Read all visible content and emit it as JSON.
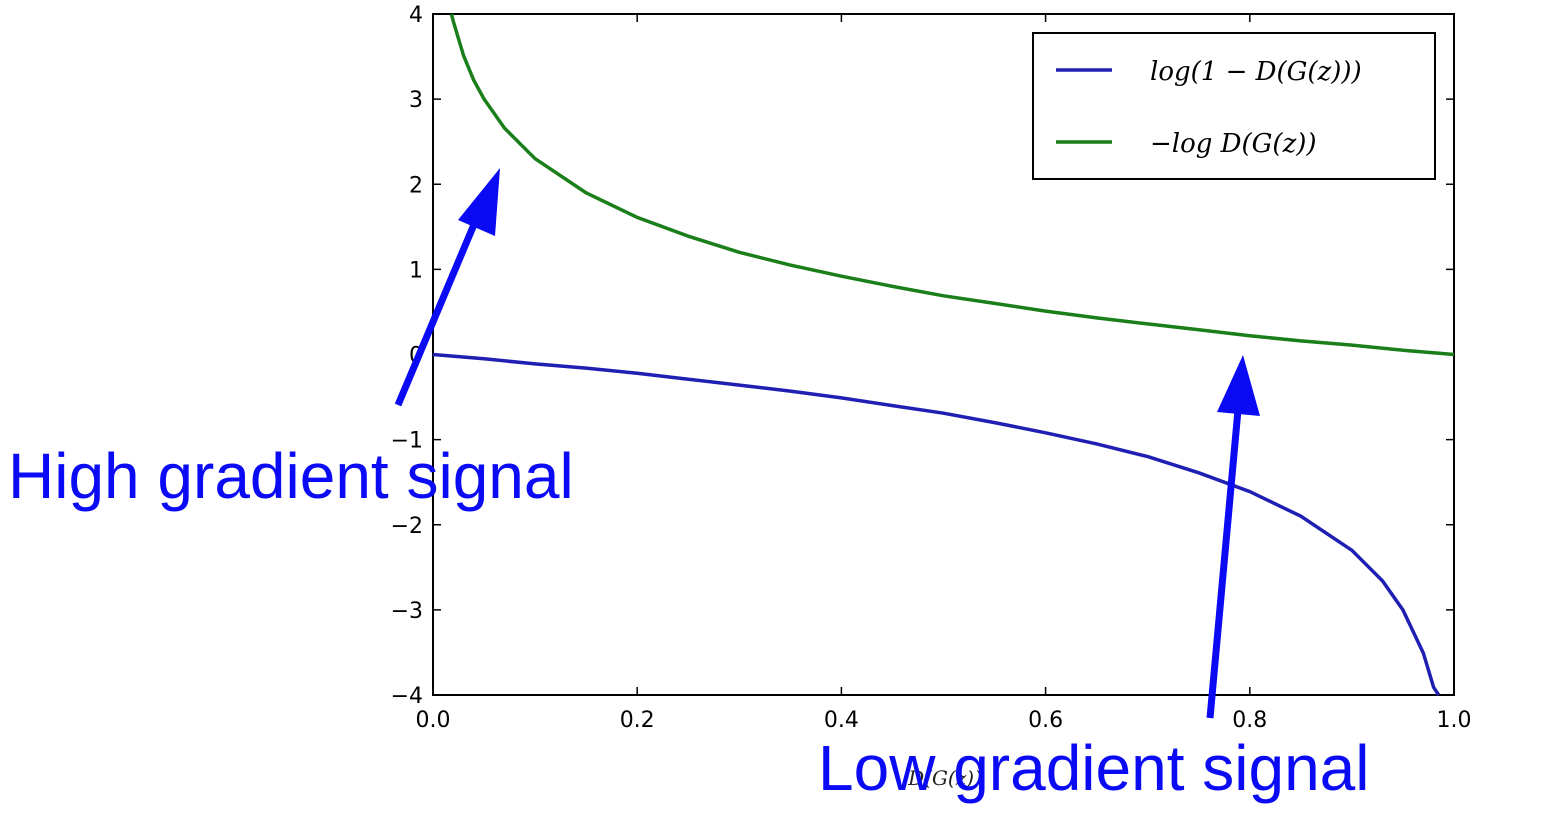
{
  "chart_data": {
    "type": "line",
    "xlabel": "D(G(z))",
    "ylabel": "",
    "xlim": [
      0.0,
      1.0
    ],
    "ylim": [
      -4,
      4
    ],
    "grid": false,
    "legend_position": "top-right",
    "x_ticks": [
      "0.0",
      "0.2",
      "0.4",
      "0.6",
      "0.8",
      "1.0"
    ],
    "y_ticks": [
      "4",
      "3",
      "2",
      "1",
      "0",
      "−1",
      "−2",
      "−3",
      "−4"
    ],
    "series": [
      {
        "name": "log(1 − D(G(z)))",
        "color": "#1f1fb4",
        "x": [
          0.0,
          0.05,
          0.1,
          0.15,
          0.2,
          0.25,
          0.3,
          0.35,
          0.4,
          0.45,
          0.5,
          0.55,
          0.6,
          0.65,
          0.7,
          0.75,
          0.8,
          0.85,
          0.9,
          0.93,
          0.95,
          0.97,
          0.98,
          0.985
        ],
        "y": [
          0.0,
          -0.05,
          -0.11,
          -0.16,
          -0.22,
          -0.29,
          -0.36,
          -0.43,
          -0.51,
          -0.6,
          -0.69,
          -0.8,
          -0.92,
          -1.05,
          -1.2,
          -1.39,
          -1.61,
          -1.9,
          -2.3,
          -2.66,
          -3.0,
          -3.51,
          -3.91,
          -4.0
        ]
      },
      {
        "name": "−log D(G(z))",
        "color": "#1a7f1a",
        "x": [
          0.018,
          0.02,
          0.03,
          0.04,
          0.05,
          0.07,
          0.1,
          0.15,
          0.2,
          0.25,
          0.3,
          0.35,
          0.4,
          0.45,
          0.5,
          0.55,
          0.6,
          0.65,
          0.7,
          0.75,
          0.8,
          0.85,
          0.9,
          0.95,
          1.0
        ],
        "y": [
          4.0,
          3.91,
          3.51,
          3.22,
          3.0,
          2.66,
          2.3,
          1.9,
          1.61,
          1.39,
          1.2,
          1.05,
          0.92,
          0.8,
          0.69,
          0.6,
          0.51,
          0.43,
          0.36,
          0.29,
          0.22,
          0.16,
          0.11,
          0.05,
          0.0
        ]
      }
    ],
    "annotations": [
      {
        "text": "High gradient signal",
        "color": "#0a0af5"
      },
      {
        "text": "Low gradient signal",
        "color": "#0a0af5"
      }
    ]
  }
}
